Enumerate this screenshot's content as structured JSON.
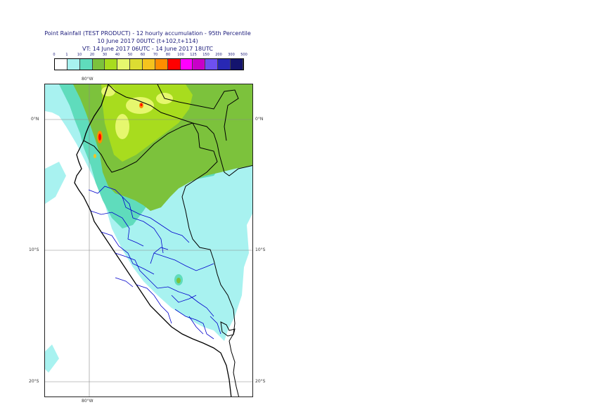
{
  "header": {
    "title_line1": "Point Rainfall (TEST PRODUCT) - 12 hourly accumulation - 95th Percentile",
    "title_line2": "10 June 2017 00UTC (t+102,t+114)",
    "title_line3": "VT: 14 June 2017 06UTC - 14 June 2017 18UTC"
  },
  "legend": {
    "ticks": [
      "0",
      "1",
      "10",
      "20",
      "30",
      "40",
      "50",
      "60",
      "70",
      "80",
      "100",
      "125",
      "150",
      "200",
      "300",
      "500"
    ],
    "colors": [
      "#ffffff",
      "#a8f2f0",
      "#5fdcbc",
      "#7cc23c",
      "#a8dc1e",
      "#e6f76e",
      "#dcdc32",
      "#f5c31e",
      "#ff8c00",
      "#ff0000",
      "#ff00ff",
      "#c800c8",
      "#6e50f0",
      "#2828b4",
      "#14146e"
    ]
  },
  "map": {
    "gridlines": {
      "lat_labels": [
        "0°N",
        "10°S",
        "20°S"
      ],
      "lon_label": "80°W"
    },
    "colors": {
      "ocean_light": "#a8f2f0",
      "teal": "#5fdcbc",
      "green": "#7cc23c",
      "yellowgreen": "#a8dc1e",
      "yellow": "#e6f76e",
      "border": "#000000",
      "regions": "#0000cc"
    }
  }
}
